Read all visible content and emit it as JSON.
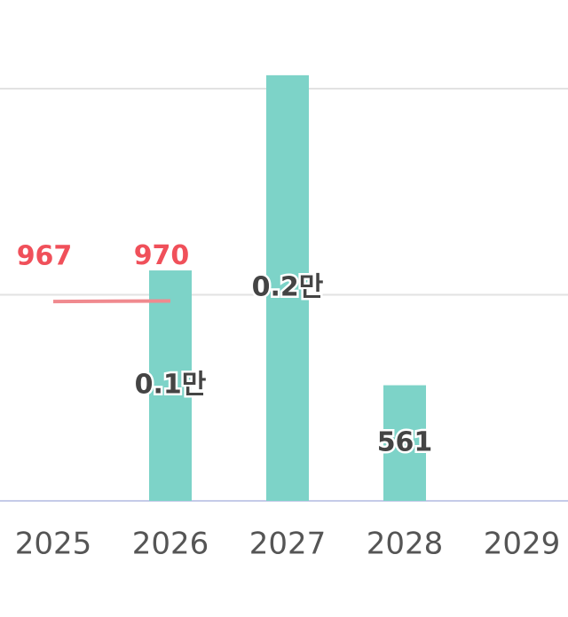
{
  "chart_data": {
    "type": "bar",
    "categories": [
      "2025",
      "2026",
      "2027",
      "2028",
      "2029"
    ],
    "series": [
      {
        "type": "bar",
        "color": "#7dd3c8",
        "values": [
          null,
          1118,
          2065,
          561,
          null
        ],
        "value_labels": [
          null,
          "0.1만",
          "0.2만",
          "561",
          null
        ]
      },
      {
        "type": "line",
        "color": "#f08a8f",
        "label_color": "#f0505a",
        "values": [
          967,
          970,
          null,
          null,
          null
        ]
      }
    ],
    "ylim": [
      0,
      2430
    ],
    "yticks": [
      0,
      1000,
      2000
    ],
    "grid": true
  }
}
